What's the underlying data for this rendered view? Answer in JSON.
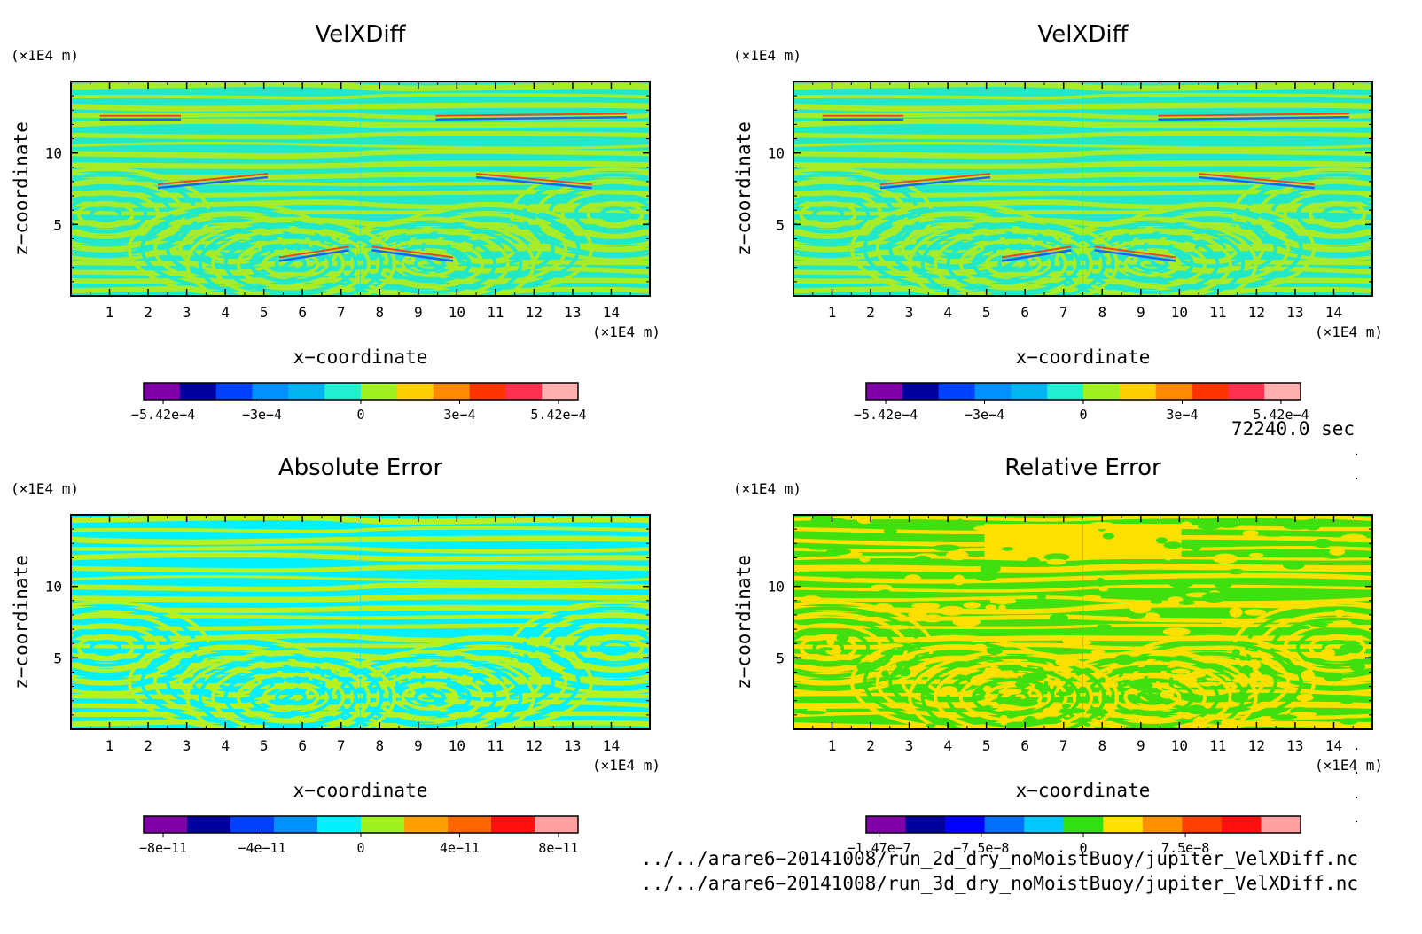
{
  "panels": [
    {
      "title": "VelXDiff",
      "unit": "(×1E4 m)",
      "xlabel": "x−coordinate",
      "ylabel": "z−coordinate",
      "colorbar": {
        "colors": [
          "#8000a8",
          "#0000a0",
          "#0040ff",
          "#0090ff",
          "#00b4f0",
          "#20f0d0",
          "#a0f020",
          "#ffd000",
          "#ff8c00",
          "#ff3300",
          "#ff3050",
          "#ffb0b0"
        ],
        "ticks": [
          "−5.42e−4",
          "−3e−4",
          "0",
          "3e−4",
          "5.42e−4"
        ]
      },
      "palette": {
        "base": "#20e8c8",
        "alt": "#a8ec28",
        "streak_lo": "#2060ff",
        "streak_hi": "#ff4020"
      }
    },
    {
      "title": "VelXDiff",
      "unit": "(×1E4 m)",
      "xlabel": "x−coordinate",
      "ylabel": "z−coordinate",
      "colorbar": {
        "colors": [
          "#8000a8",
          "#0000a0",
          "#0040ff",
          "#0090ff",
          "#00b4f0",
          "#20f0d0",
          "#a0f020",
          "#ffd000",
          "#ff8c00",
          "#ff3300",
          "#ff3050",
          "#ffb0b0"
        ],
        "ticks": [
          "−5.42e−4",
          "−3e−4",
          "0",
          "3e−4",
          "5.42e−4"
        ]
      },
      "palette": {
        "base": "#20e8c8",
        "alt": "#a8ec28",
        "streak_lo": "#2060ff",
        "streak_hi": "#ff4020"
      }
    },
    {
      "title": "Absolute Error",
      "unit": "(×1E4 m)",
      "xlabel": "x−coordinate",
      "ylabel": "z−coordinate",
      "colorbar": {
        "colors": [
          "#8000a8",
          "#0000a0",
          "#0040ff",
          "#0090ff",
          "#00f0ff",
          "#a0f020",
          "#ffa000",
          "#ff6600",
          "#ff1010",
          "#ffa0a0"
        ],
        "ticks": [
          "−8e−11",
          "−4e−11",
          "0",
          "4e−11",
          "8e−11"
        ]
      },
      "palette": {
        "base": "#00f0ff",
        "alt": "#b8f020",
        "streak_lo": "#00f0ff",
        "streak_hi": "#b8f020"
      }
    },
    {
      "title": "Relative Error",
      "unit": "(×1E4 m)",
      "xlabel": "x−coordinate",
      "ylabel": "z−coordinate",
      "colorbar": {
        "colors": [
          "#8000a8",
          "#0000a0",
          "#0000ff",
          "#0070ff",
          "#00c8ff",
          "#30e010",
          "#ffe000",
          "#ff9000",
          "#ff4000",
          "#ff1010",
          "#ffa0a0"
        ],
        "ticks": [
          "−1.47e−7",
          "−7.5e−8",
          "0",
          "7.5e−8"
        ]
      },
      "palette": {
        "base": "#40e010",
        "alt": "#ffe000",
        "streak_lo": "#0040ff",
        "streak_hi": "#ff3000"
      }
    }
  ],
  "chart_data": {
    "type": "heatmap",
    "x_ticks": [
      "1",
      "2",
      "3",
      "4",
      "5",
      "6",
      "7",
      "8",
      "9",
      "10",
      "11",
      "12",
      "13",
      "14"
    ],
    "y_ticks": [
      "5",
      "10"
    ],
    "xlim": [
      0,
      15
    ],
    "ylim": [
      0,
      15
    ],
    "x_unit": "(×1E4 m)",
    "z_unit": "(×1E4 m)"
  },
  "time_label": "72240.0 sec",
  "files": [
    "../../arare6−20141008/run_2d_dry_noMoistBuoy/jupiter_VelXDiff.nc",
    "../../arare6−20141008/run_3d_dry_noMoistBuoy/jupiter_VelXDiff.nc"
  ]
}
